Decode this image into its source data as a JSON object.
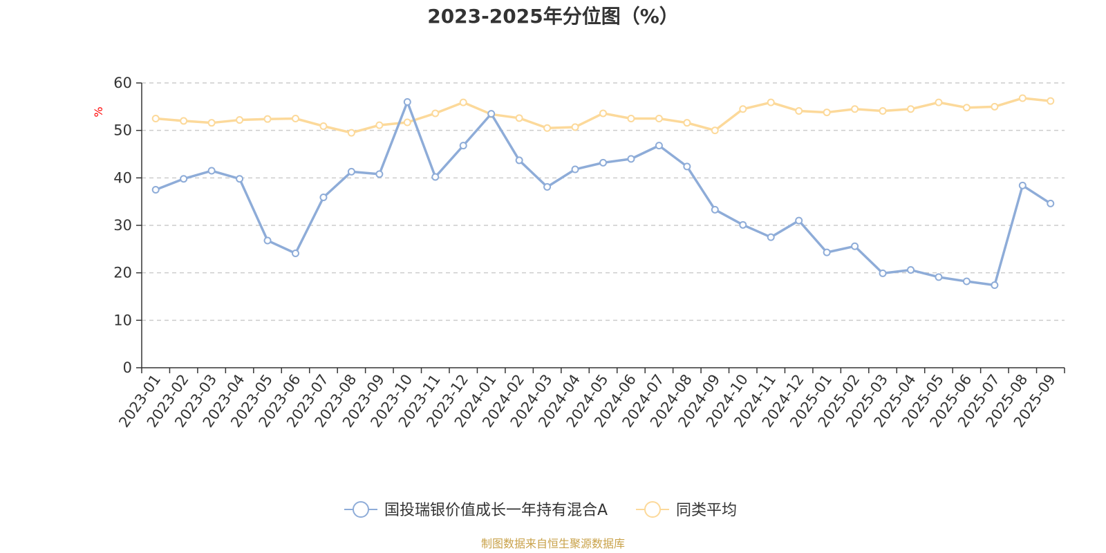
{
  "chart_data": {
    "type": "line",
    "title": "2023-2025年分位图（%）",
    "ylabel": "%",
    "xlabel": "",
    "ylim": [
      0,
      60
    ],
    "yticks": [
      0,
      10,
      20,
      30,
      40,
      50,
      60
    ],
    "grid": true,
    "legend_position": "bottom-center",
    "categories": [
      "2023-01",
      "2023-02",
      "2023-03",
      "2023-04",
      "2023-05",
      "2023-06",
      "2023-07",
      "2023-08",
      "2023-09",
      "2023-10",
      "2023-11",
      "2023-12",
      "2024-01",
      "2024-02",
      "2024-03",
      "2024-04",
      "2024-05",
      "2024-06",
      "2024-07",
      "2024-08",
      "2024-09",
      "2024-10",
      "2024-11",
      "2024-12",
      "2025-01",
      "2025-02",
      "2025-03",
      "2025-04",
      "2025-05",
      "2025-06",
      "2025-07",
      "2025-08",
      "2025-09"
    ],
    "series": [
      {
        "name": "国投瑞银价值成长一年持有混合A",
        "color": "#8eacd8",
        "values": [
          37.5,
          39.8,
          41.5,
          39.8,
          26.8,
          24.1,
          35.9,
          41.3,
          40.8,
          56.0,
          40.2,
          46.8,
          53.5,
          43.7,
          38.1,
          41.8,
          43.2,
          44.0,
          46.8,
          42.4,
          33.3,
          30.1,
          27.5,
          31.0,
          24.3,
          25.6,
          19.9,
          20.6,
          19.1,
          18.2,
          17.4,
          38.4,
          34.6
        ]
      },
      {
        "name": "同类平均",
        "color": "#fcd99a",
        "values": [
          52.5,
          52.0,
          51.6,
          52.2,
          52.4,
          52.5,
          50.9,
          49.5,
          51.1,
          51.7,
          53.6,
          55.9,
          53.4,
          52.6,
          50.5,
          50.7,
          53.6,
          52.5,
          52.5,
          51.6,
          50.0,
          54.5,
          55.9,
          54.1,
          53.8,
          54.5,
          54.1,
          54.5,
          55.9,
          54.8,
          55.0,
          56.8,
          56.2
        ]
      }
    ]
  },
  "footer": {
    "source": "制图数据来自恒生聚源数据库",
    "source_color": "#c9a24a"
  }
}
